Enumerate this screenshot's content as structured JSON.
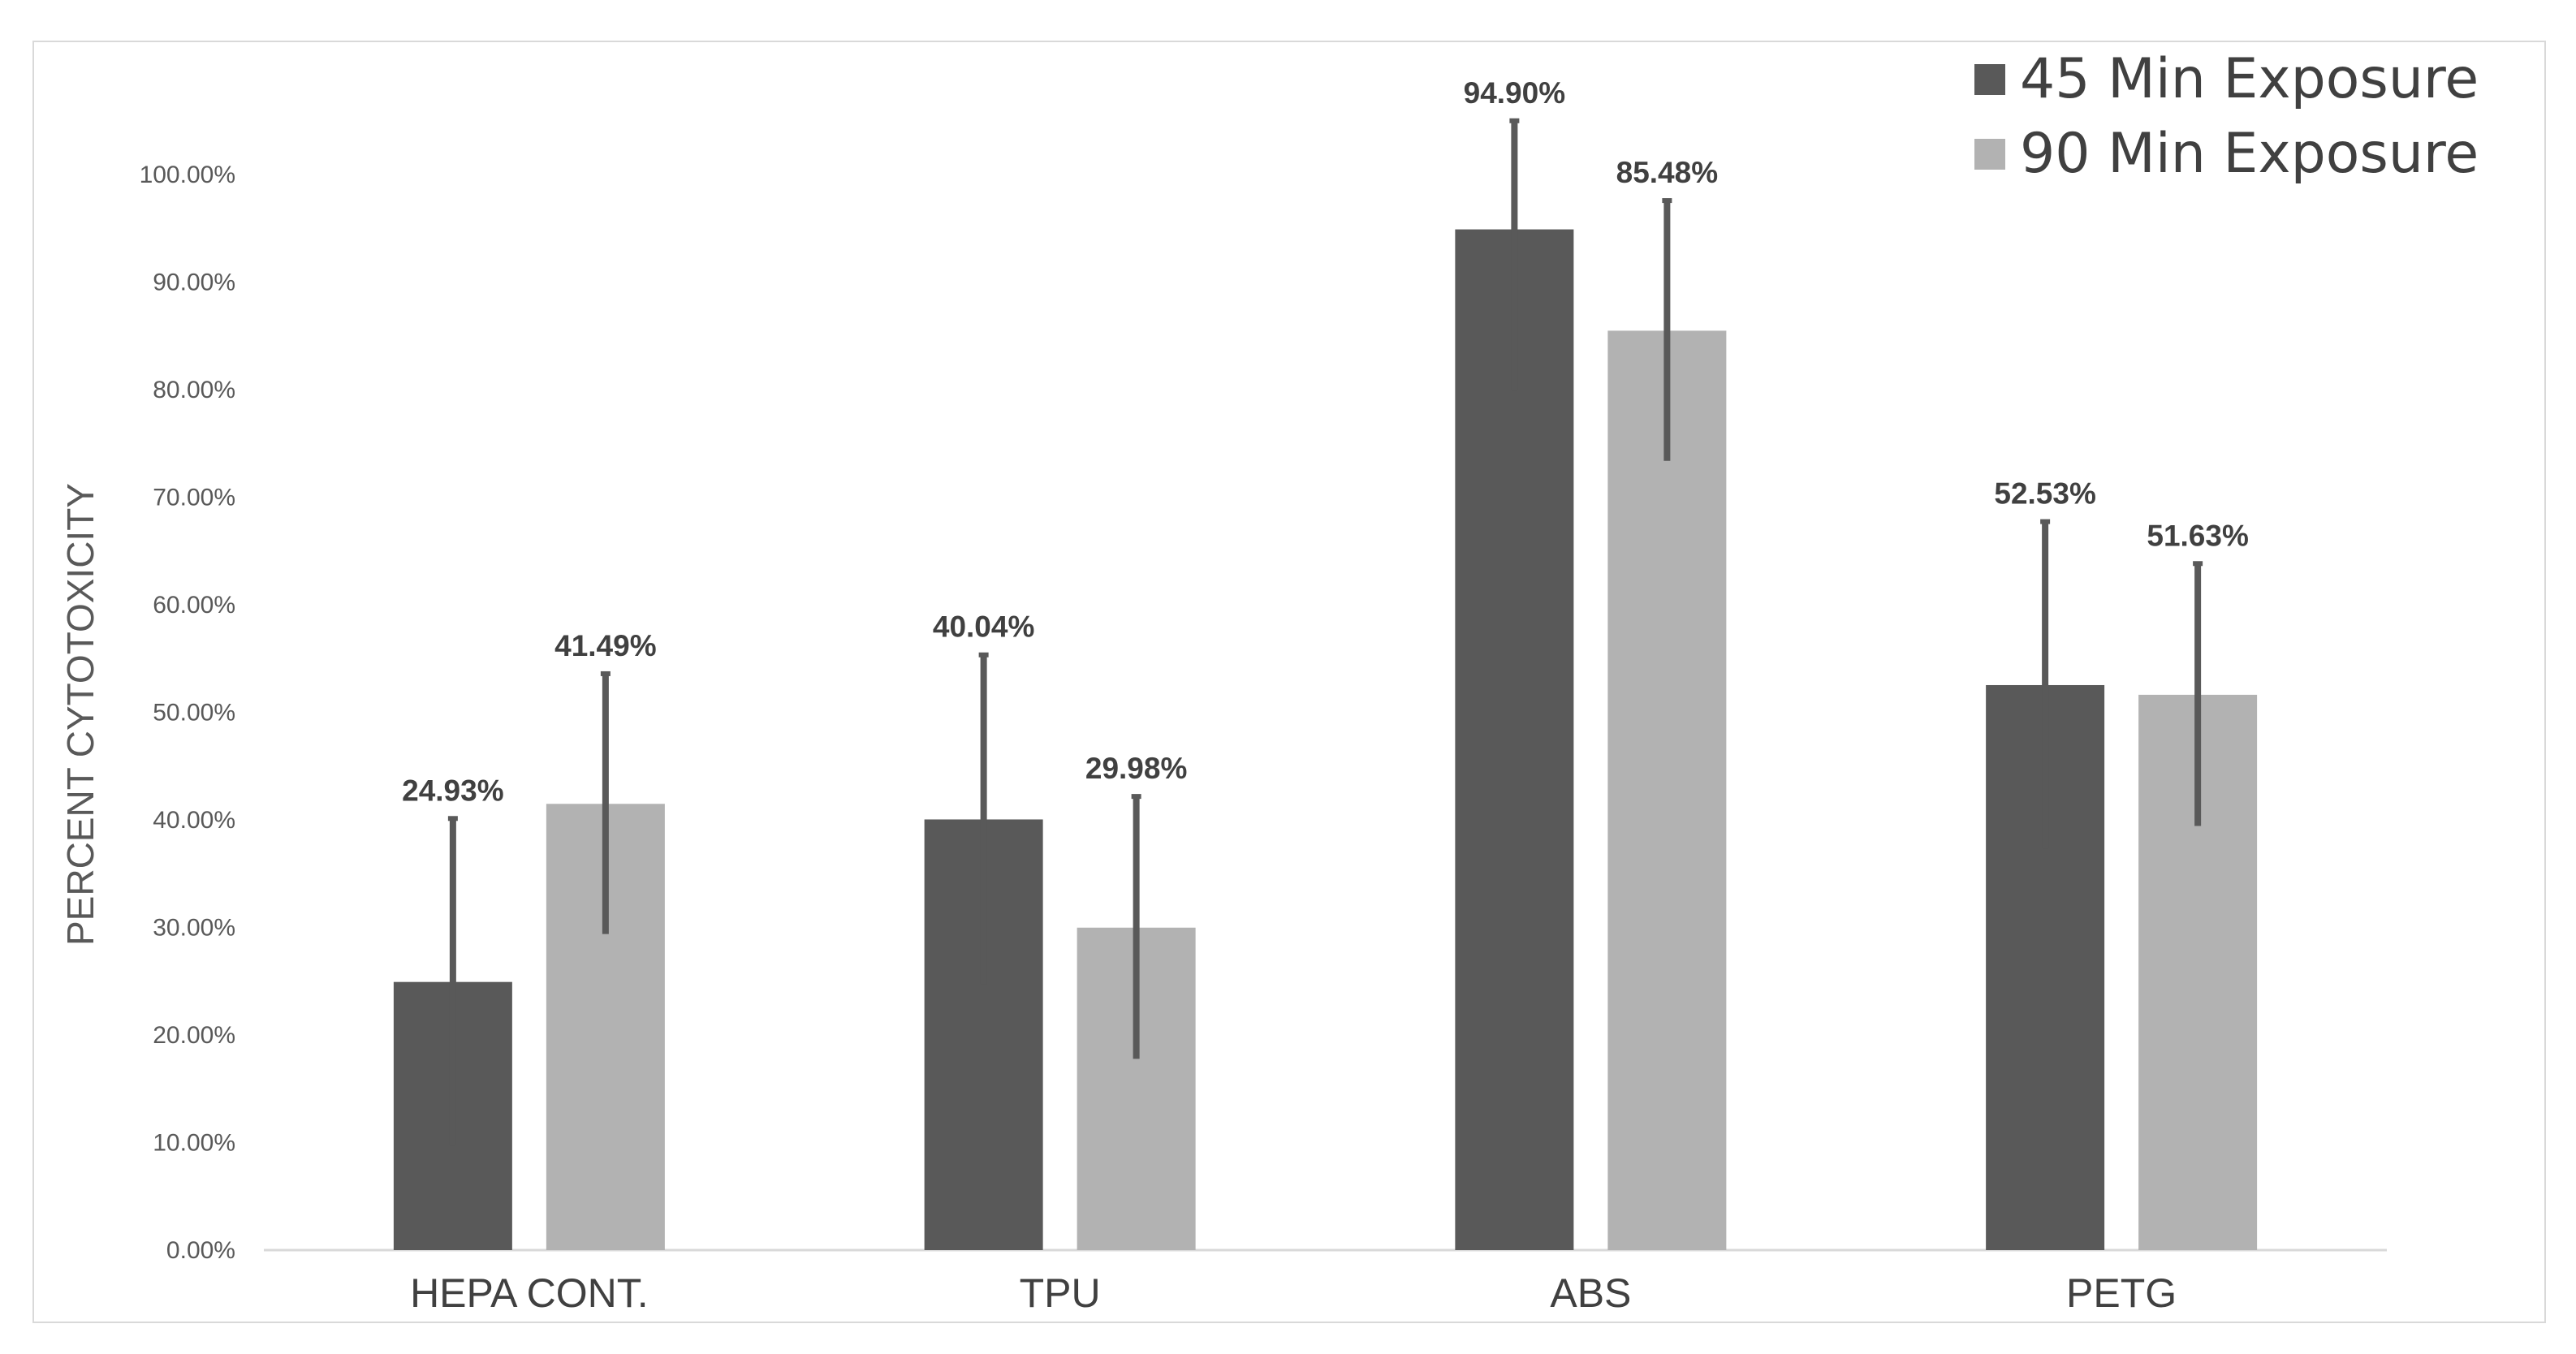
{
  "chart_data": {
    "type": "bar",
    "title": "",
    "xlabel": "",
    "ylabel": "PERCENT CYTOTOXICITY",
    "ylim": [
      0,
      100
    ],
    "yticks": [
      "0.00%",
      "10.00%",
      "20.00%",
      "30.00%",
      "40.00%",
      "50.00%",
      "60.00%",
      "70.00%",
      "80.00%",
      "90.00%",
      "100.00%"
    ],
    "categories": [
      "HEPA CONT.",
      "TPU",
      "ABS",
      "PETG"
    ],
    "series": [
      {
        "name": "45 Min Exposure",
        "color": "#595959",
        "values": [
          24.93,
          40.04,
          94.9,
          52.53
        ],
        "labels": [
          "24.93%",
          "40.04%",
          "94.90%",
          "52.53%"
        ],
        "error": [
          15.2,
          15.3,
          15.0,
          15.2
        ]
      },
      {
        "name": "90 Min Exposure",
        "color": "#b2b2b2",
        "values": [
          41.49,
          29.98,
          85.48,
          51.63
        ],
        "labels": [
          "41.49%",
          "29.98%",
          "85.48%",
          "51.63%"
        ],
        "error": [
          12.1,
          12.2,
          12.1,
          12.2
        ]
      }
    ],
    "grid": false,
    "legend_position": "top-right"
  }
}
